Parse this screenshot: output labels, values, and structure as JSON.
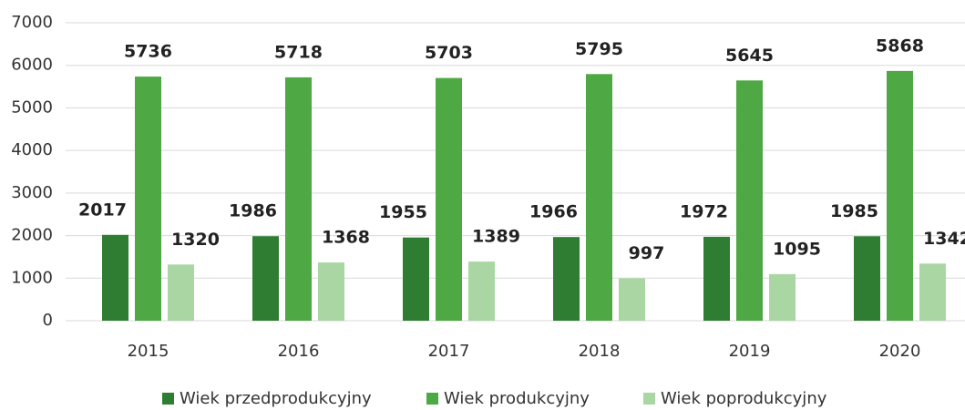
{
  "chart_data": {
    "type": "bar",
    "categories": [
      "2015",
      "2016",
      "2017",
      "2018",
      "2019",
      "2020"
    ],
    "series": [
      {
        "name": "Wiek przedprodukcyjny",
        "color": "#2f7d32",
        "values": [
          2017,
          1986,
          1955,
          1966,
          1972,
          1985
        ]
      },
      {
        "name": "Wiek produkcyjny",
        "color": "#4ea843",
        "values": [
          5736,
          5718,
          5703,
          5795,
          5645,
          5868
        ]
      },
      {
        "name": "Wiek poprodukcyjny",
        "color": "#a9d6a3",
        "values": [
          1320,
          1368,
          1389,
          997,
          1095,
          1342
        ]
      }
    ],
    "ylim": [
      0,
      7000
    ],
    "yticks": [
      0,
      1000,
      2000,
      3000,
      4000,
      5000,
      6000,
      7000
    ],
    "grid": true,
    "legend": "bottom"
  }
}
